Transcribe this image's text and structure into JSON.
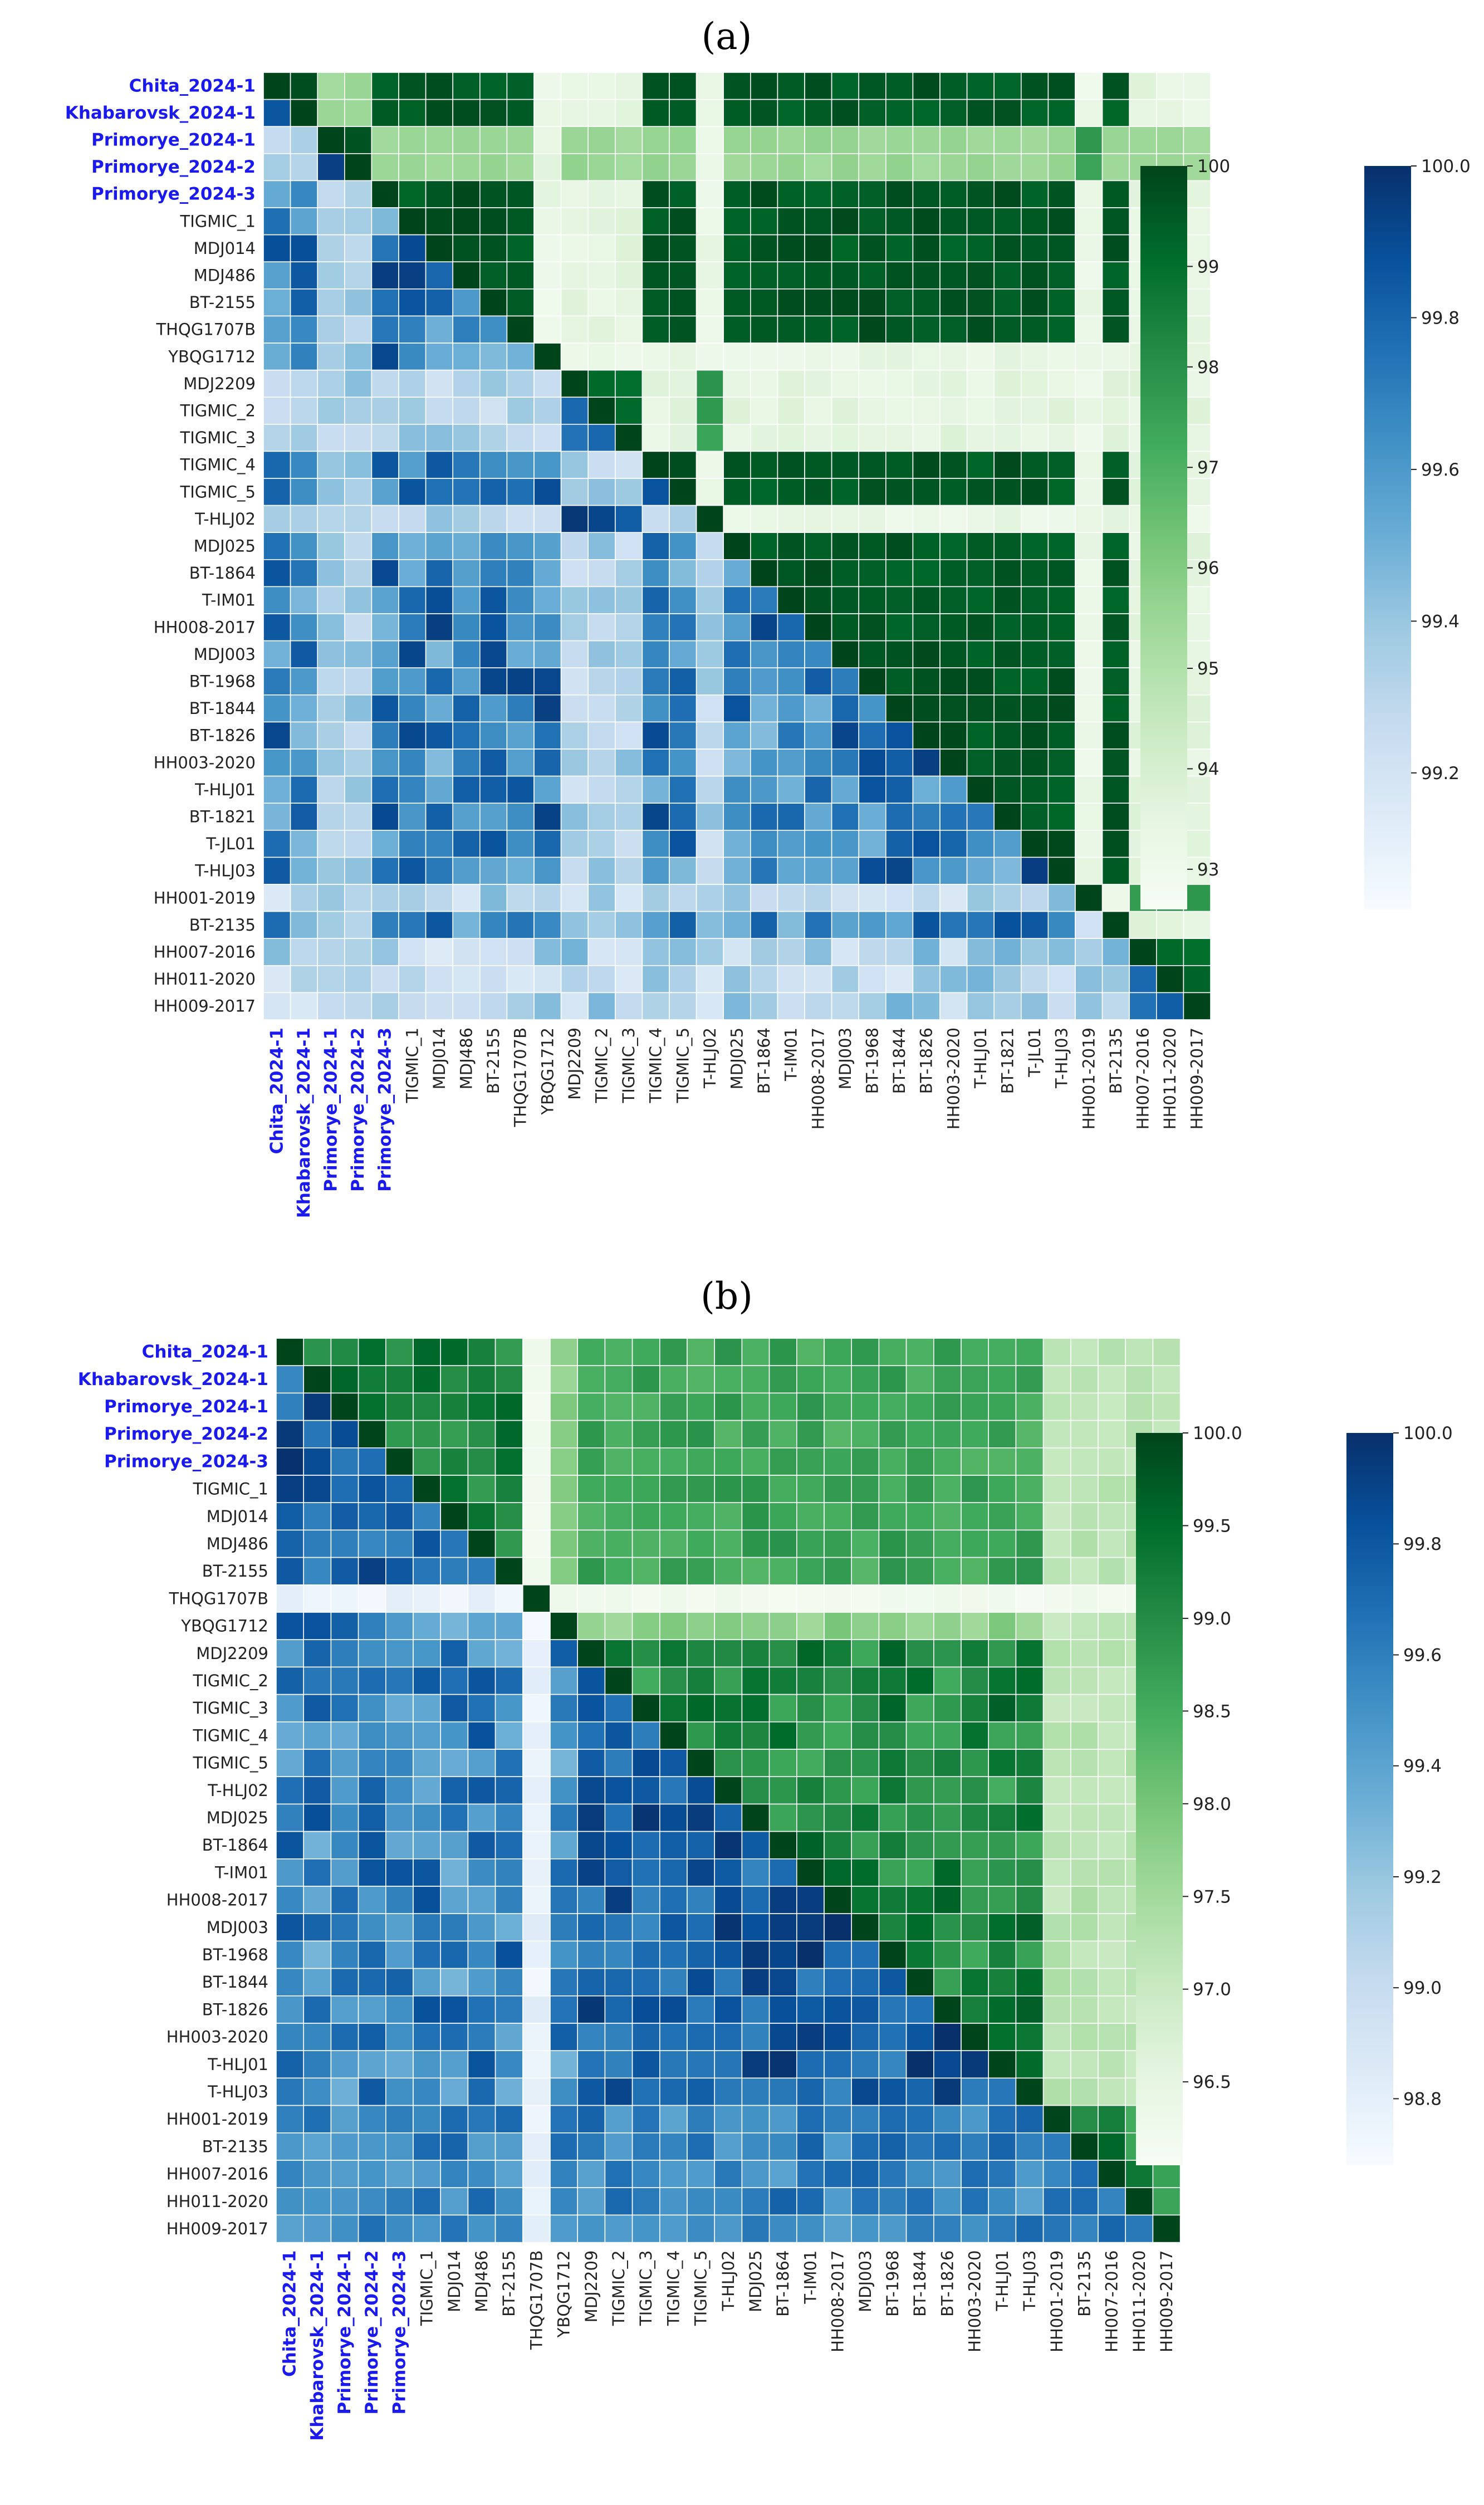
{
  "highlight_color": "#1a1aee",
  "cell_gap_color": "#ffffff",
  "green_scale": [
    "#f7fcf5",
    "#e5f5e0",
    "#c7e9c0",
    "#a1d99b",
    "#74c476",
    "#41ab5d",
    "#238b45",
    "#006d2c",
    "#00441b"
  ],
  "blue_scale": [
    "#f7fbff",
    "#deebf7",
    "#c6dbef",
    "#9ecae1",
    "#6baed6",
    "#4292c6",
    "#2171b5",
    "#08519c",
    "#08306b"
  ],
  "chart_data": [
    {
      "panel_label": "(a)",
      "type": "heatmap",
      "title": "",
      "labels": [
        "Chita_2024-1",
        "Khabarovsk_2024-1",
        "Primorye_2024-1",
        "Primorye_2024-2",
        "Primorye_2024-3",
        "TIGMIC_1",
        "MDJ014",
        "MDJ486",
        "BT-2155",
        "THQG1707B",
        "YBQG1712",
        "MDJ2209",
        "TIGMIC_2",
        "TIGMIC_3",
        "TIGMIC_4",
        "TIGMIC_5",
        "T-HLJ02",
        "MDJ025",
        "BT-1864",
        "T-IM01",
        "HH008-2017",
        "MDJ003",
        "BT-1968",
        "BT-1844",
        "BT-1826",
        "HH003-2020",
        "T-HLJ01",
        "BT-1821",
        "T-JL01",
        "T-HLJ03",
        "HH001-2019",
        "BT-2135",
        "HH007-2016",
        "HH011-2020",
        "HH009-2017"
      ],
      "highlighted_labels": [
        "Chita_2024-1",
        "Khabarovsk_2024-1",
        "Primorye_2024-1",
        "Primorye_2024-2",
        "Primorye_2024-3"
      ],
      "upper_triangle": {
        "colormap": "Greens",
        "range": [
          92.6,
          100
        ],
        "ticks": [
          "93",
          "94",
          "95",
          "96",
          "97",
          "98",
          "99",
          "100"
        ]
      },
      "lower_triangle": {
        "colormap": "Blues",
        "range": [
          99.02,
          100
        ],
        "ticks": [
          "99.2",
          "99.4",
          "99.6",
          "99.8",
          "100.0"
        ]
      },
      "clusters": [
        0,
        0,
        4,
        4,
        0,
        0,
        0,
        0,
        0,
        0,
        0,
        1,
        1,
        1,
        0,
        0,
        1,
        0,
        0,
        0,
        0,
        0,
        0,
        0,
        0,
        0,
        0,
        0,
        0,
        0,
        2,
        0,
        3,
        3,
        3
      ],
      "special_columns": [
        10,
        16,
        30
      ]
    },
    {
      "panel_label": "(b)",
      "type": "heatmap",
      "title": "",
      "labels": [
        "Chita_2024-1",
        "Khabarovsk_2024-1",
        "Primorye_2024-1",
        "Primorye_2024-2",
        "Primorye_2024-3",
        "TIGMIC_1",
        "MDJ014",
        "MDJ486",
        "BT-2155",
        "THQG1707B",
        "YBQG1712",
        "MDJ2209",
        "TIGMIC_2",
        "TIGMIC_3",
        "TIGMIC_4",
        "TIGMIC_5",
        "T-HLJ02",
        "MDJ025",
        "BT-1864",
        "T-IM01",
        "HH008-2017",
        "MDJ003",
        "BT-1968",
        "BT-1844",
        "BT-1826",
        "HH003-2020",
        "T-HLJ01",
        "T-HLJ03",
        "HH001-2019",
        "BT-2135",
        "HH007-2016",
        "HH011-2020",
        "HH009-2017"
      ],
      "highlighted_labels": [
        "Chita_2024-1",
        "Khabarovsk_2024-1",
        "Primorye_2024-1",
        "Primorye_2024-2",
        "Primorye_2024-3"
      ],
      "upper_triangle": {
        "colormap": "Greens",
        "range": [
          96.05,
          100
        ],
        "ticks": [
          "96.5",
          "97.0",
          "97.5",
          "98.0",
          "98.5",
          "99.0",
          "99.5",
          "100.0"
        ]
      },
      "lower_triangle": {
        "colormap": "Blues",
        "range": [
          98.68,
          100
        ],
        "ticks": [
          "98.8",
          "99.0",
          "99.2",
          "99.4",
          "99.6",
          "99.8",
          "100.0"
        ]
      },
      "outlier_index": 9,
      "groups": [
        0,
        0,
        0,
        0,
        0,
        0,
        0,
        0,
        0,
        -1,
        1,
        2,
        2,
        2,
        2,
        2,
        2,
        2,
        2,
        2,
        2,
        2,
        2,
        2,
        2,
        2,
        2,
        2,
        3,
        3,
        3,
        3,
        3
      ]
    }
  ]
}
